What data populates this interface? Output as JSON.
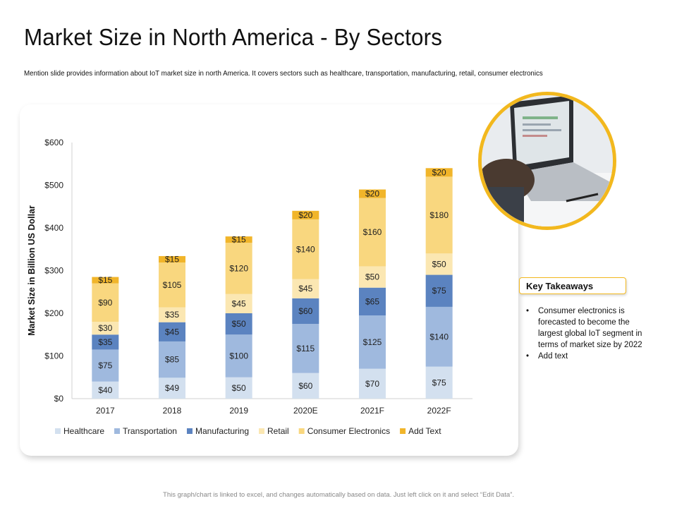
{
  "page": {
    "title": "Market Size in North America - By Sectors",
    "subtitle": "Mention slide provides information about IoT market size in north America. It covers sectors such as healthcare, transportation, manufacturing, retail, consumer electronics",
    "footer": "This graph/chart is linked to excel, and changes automatically based on data. Just left click on it and select “Edit Data”."
  },
  "takeaways": {
    "heading": "Key Takeaways",
    "items": [
      "Consumer electronics is forecasted to become the largest global IoT segment in terms of market size by 2022",
      "Add text"
    ]
  },
  "chart_data": {
    "type": "bar",
    "stacked": true,
    "title": "",
    "xlabel": "",
    "ylabel": "Market Size in Billion US Dollar",
    "ylim": [
      0,
      600
    ],
    "yticks": [
      0,
      100,
      200,
      300,
      400,
      500,
      600
    ],
    "ytick_labels": [
      "$0",
      "$100",
      "$200",
      "$300",
      "$400",
      "$500",
      "$600"
    ],
    "categories": [
      "2017",
      "2018",
      "2019",
      "2020E",
      "2021F",
      "2022F"
    ],
    "legend_position": "bottom",
    "series": [
      {
        "name": "Healthcare",
        "color": "#d3e0ef",
        "values": [
          40,
          49,
          50,
          60,
          70,
          75
        ]
      },
      {
        "name": "Transportation",
        "color": "#9fb9de",
        "values": [
          75,
          85,
          100,
          115,
          125,
          140
        ]
      },
      {
        "name": "Manufacturing",
        "color": "#5b83c0",
        "values": [
          35,
          45,
          50,
          60,
          65,
          75
        ]
      },
      {
        "name": "Retail",
        "color": "#fbe7b2",
        "values": [
          30,
          35,
          45,
          45,
          50,
          50
        ]
      },
      {
        "name": "Consumer Electronics",
        "color": "#f9d77f",
        "values": [
          90,
          105,
          120,
          140,
          160,
          180
        ]
      },
      {
        "name": "Add Text",
        "color": "#f1b52a",
        "values": [
          15,
          15,
          15,
          20,
          20,
          20
        ]
      }
    ],
    "value_prefix": "$"
  }
}
